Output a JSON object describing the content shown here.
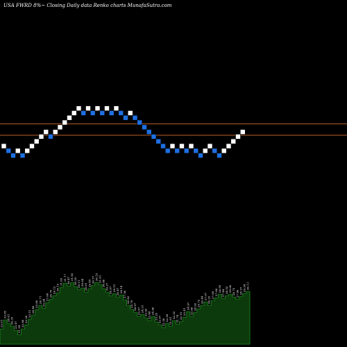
{
  "header": {
    "title": "USA FWRD 8%~  Closing Daily data  Renko  charts MunafaSutra.com"
  },
  "colors": {
    "background": "#000000",
    "up_brick": "#ffffff",
    "down_brick": "#1e6fe0",
    "brick_border": "#000000",
    "level_line": "#b8602a",
    "volume_fill": "#0c3a0c",
    "volume_stroke": "#1f8a1f",
    "text": "#ffffff"
  },
  "chart_data": [
    {
      "type": "renko",
      "title": "USA FWRD 8%~  Closing Daily data  Renko  charts MunafaSutra.com",
      "bricks": [
        {
          "level": 0,
          "dir": "up"
        },
        {
          "level": -1,
          "dir": "down"
        },
        {
          "level": -2,
          "dir": "down"
        },
        {
          "level": -1,
          "dir": "up"
        },
        {
          "level": -2,
          "dir": "down"
        },
        {
          "level": -1,
          "dir": "up"
        },
        {
          "level": 0,
          "dir": "up"
        },
        {
          "level": 1,
          "dir": "up"
        },
        {
          "level": 2,
          "dir": "up"
        },
        {
          "level": 3,
          "dir": "up"
        },
        {
          "level": 2,
          "dir": "down"
        },
        {
          "level": 3,
          "dir": "up"
        },
        {
          "level": 4,
          "dir": "up"
        },
        {
          "level": 5,
          "dir": "up"
        },
        {
          "level": 6,
          "dir": "up"
        },
        {
          "level": 7,
          "dir": "up"
        },
        {
          "level": 8,
          "dir": "up"
        },
        {
          "level": 7,
          "dir": "down"
        },
        {
          "level": 8,
          "dir": "up"
        },
        {
          "level": 7,
          "dir": "down"
        },
        {
          "level": 8,
          "dir": "up"
        },
        {
          "level": 7,
          "dir": "down"
        },
        {
          "level": 8,
          "dir": "up"
        },
        {
          "level": 7,
          "dir": "down"
        },
        {
          "level": 8,
          "dir": "up"
        },
        {
          "level": 7,
          "dir": "down"
        },
        {
          "level": 6,
          "dir": "down"
        },
        {
          "level": 7,
          "dir": "up"
        },
        {
          "level": 6,
          "dir": "down"
        },
        {
          "level": 5,
          "dir": "down"
        },
        {
          "level": 4,
          "dir": "down"
        },
        {
          "level": 3,
          "dir": "down"
        },
        {
          "level": 2,
          "dir": "down"
        },
        {
          "level": 1,
          "dir": "down"
        },
        {
          "level": 0,
          "dir": "down"
        },
        {
          "level": -1,
          "dir": "down"
        },
        {
          "level": 0,
          "dir": "up"
        },
        {
          "level": -1,
          "dir": "down"
        },
        {
          "level": 0,
          "dir": "up"
        },
        {
          "level": -1,
          "dir": "down"
        },
        {
          "level": 0,
          "dir": "up"
        },
        {
          "level": -1,
          "dir": "down"
        },
        {
          "level": -2,
          "dir": "down"
        },
        {
          "level": -1,
          "dir": "up"
        },
        {
          "level": 0,
          "dir": "up"
        },
        {
          "level": -1,
          "dir": "down"
        },
        {
          "level": -2,
          "dir": "down"
        },
        {
          "level": -1,
          "dir": "up"
        },
        {
          "level": 0,
          "dir": "up"
        },
        {
          "level": 1,
          "dir": "up"
        },
        {
          "level": 2,
          "dir": "up"
        },
        {
          "level": 3,
          "dir": "up"
        }
      ],
      "horizontal_lines": [
        {
          "level": 4.7
        },
        {
          "level": 2.3
        }
      ]
    },
    {
      "type": "area",
      "name": "volume",
      "labels": [
        "23.61",
        "23.85",
        "24.61",
        "24.35",
        "23.47",
        "21.54",
        "22.86",
        "22.28",
        "23.51",
        "24.48",
        "25.60",
        "26.71",
        "25.94",
        "27.64",
        "28.70",
        "29.12",
        "30.15",
        "31.05",
        "31.17",
        "30.47",
        "31.93",
        "30.25",
        "29.11",
        "29.84",
        "28.61",
        "29.45",
        "30.57",
        "30.15",
        "31.61",
        "30.86",
        "29.27",
        "28.97",
        "29.51",
        "28.47",
        "29.14",
        "27.56",
        "26.43",
        "25.79",
        "24.97",
        "23.87",
        "24.31",
        "23.95",
        "23.44",
        "24.96",
        "23.25",
        "22.67",
        "21.58",
        "22.29",
        "21.61",
        "22.32",
        "21.74",
        "22.15",
        "23.41",
        "24.97",
        "23.86",
        "24.92",
        "25.72",
        "26.44",
        "27.07",
        "26.25",
        "27.09",
        "27.68",
        "28.95",
        "27.44",
        "28.52",
        "29.06",
        "28.72",
        "27.96",
        "28.57",
        "29.34",
        "30.11"
      ],
      "values": [
        2.2,
        3.5,
        3.0,
        2.6,
        2.0,
        1.4,
        2.2,
        2.8,
        3.6,
        4.2,
        5.0,
        5.6,
        5.2,
        6.0,
        6.5,
        7.0,
        7.4,
        8.2,
        8.8,
        8.4,
        8.9,
        8.3,
        7.9,
        8.1,
        7.5,
        8.0,
        8.5,
        8.9,
        8.6,
        8.0,
        7.5,
        7.0,
        7.3,
        6.8,
        7.1,
        6.4,
        5.6,
        5.0,
        4.6,
        4.0,
        4.3,
        3.8,
        3.4,
        4.0,
        3.2,
        2.8,
        2.4,
        3.0,
        2.6,
        3.4,
        2.9,
        3.3,
        3.9,
        4.7,
        4.0,
        4.6,
        5.1,
        5.6,
        6.1,
        5.6,
        6.3,
        6.7,
        7.2,
        6.6,
        7.0,
        7.2,
        6.8,
        6.5,
        6.9,
        7.3,
        7.6
      ]
    }
  ]
}
